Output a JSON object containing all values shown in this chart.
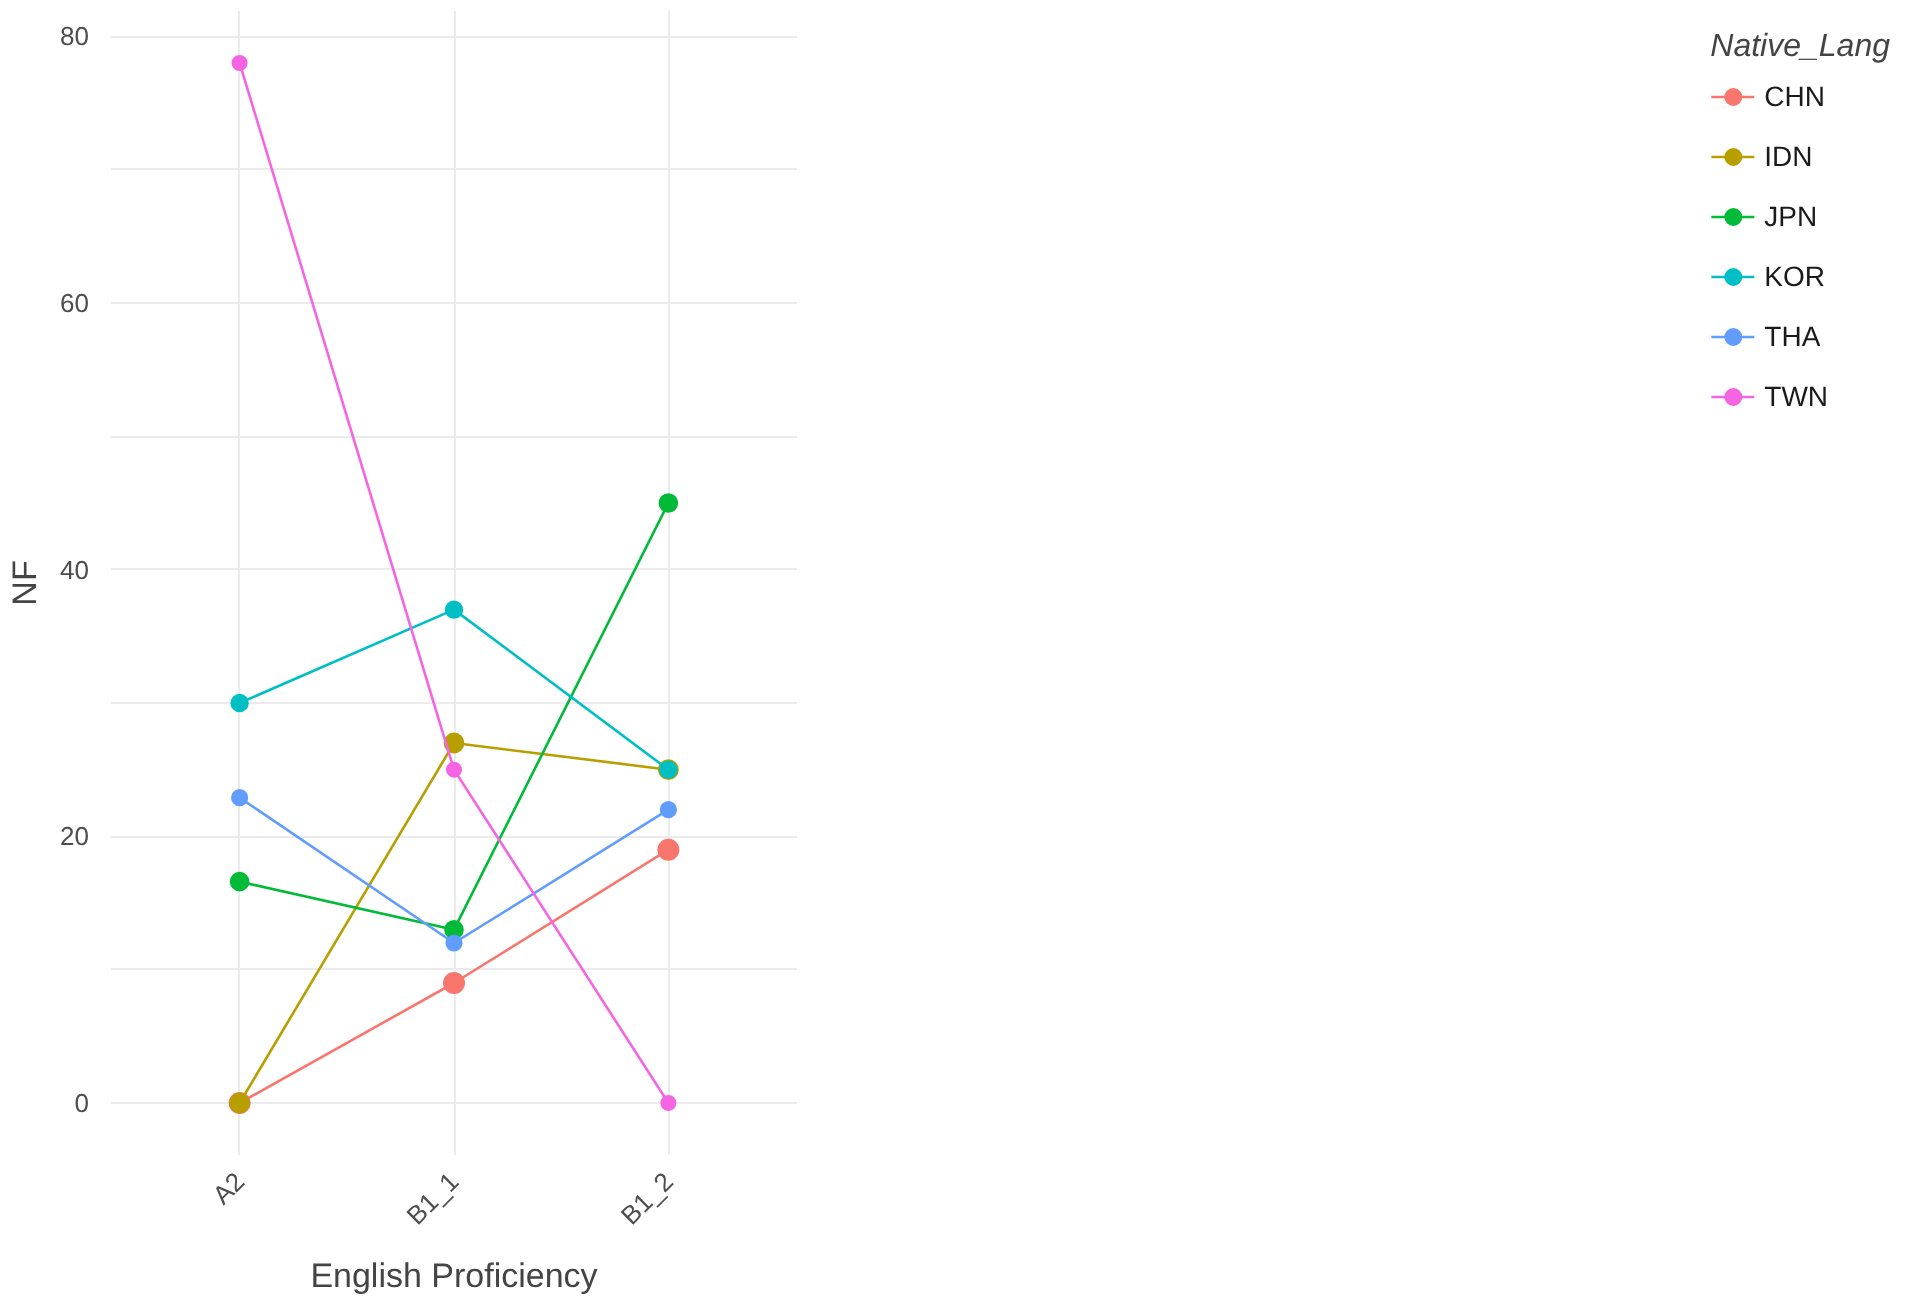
{
  "chart_data": {
    "type": "line",
    "xlabel": "English Proficiency",
    "ylabel": "NF",
    "legend_title": "Native_Lang",
    "categories": [
      "A2",
      "B1_1",
      "B1_2"
    ],
    "series": [
      {
        "name": "CHN",
        "color": "#f8766d",
        "values": [
          0,
          9,
          19
        ]
      },
      {
        "name": "IDN",
        "color": "#b79f00",
        "values": [
          0,
          27,
          25
        ]
      },
      {
        "name": "JPN",
        "color": "#00ba38",
        "values": [
          16.6,
          13,
          45
        ]
      },
      {
        "name": "KOR",
        "color": "#00bfc4",
        "values": [
          30,
          37,
          25
        ]
      },
      {
        "name": "THA",
        "color": "#619cff",
        "values": [
          22.9,
          12,
          22
        ]
      },
      {
        "name": "TWN",
        "color": "#f564e3",
        "values": [
          78,
          25,
          0
        ]
      }
    ],
    "ylim": [
      -3.9,
      81.9
    ],
    "yticks": [
      0,
      {
        "value": 10,
        "label": null
      },
      20,
      {
        "value": 30,
        "label": null
      },
      40,
      {
        "value": 50,
        "label": null
      },
      60,
      {
        "value": 70,
        "label": null
      },
      80
    ],
    "grid": true,
    "legend": "right",
    "marker": "circle",
    "line_style": "solid"
  }
}
